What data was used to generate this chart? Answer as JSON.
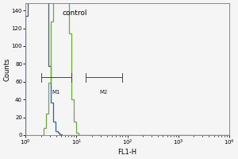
{
  "title": "",
  "xlabel": "FL1-H",
  "ylabel": "Counts",
  "annotation": "control",
  "bg_color": "#f5f5f5",
  "control_color": "#3a5aad",
  "sample_color": "#6aaa3a",
  "xlim_log": [
    1.0,
    10000
  ],
  "ylim": [
    0,
    148
  ],
  "yticks": [
    0,
    20,
    40,
    60,
    80,
    100,
    120,
    140
  ],
  "marker1_label": "M1",
  "marker2_label": "M2",
  "marker1_x": [
    2.0,
    8.0
  ],
  "marker1_y": 65,
  "marker2_x": [
    15,
    80
  ],
  "marker2_y": 65,
  "control_mean_log": 0.55,
  "control_sigma": 0.28,
  "sample_mean_log": 1.6,
  "sample_sigma": 0.22,
  "n_cells": 4000
}
